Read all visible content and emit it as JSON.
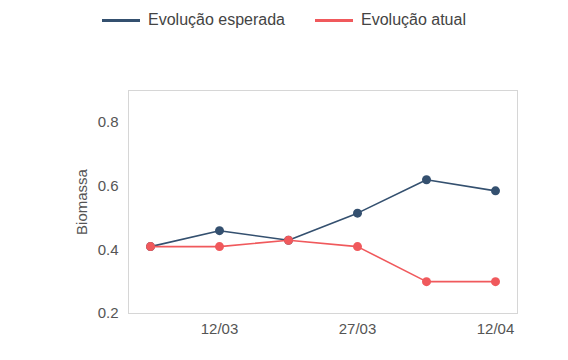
{
  "chart_data": {
    "type": "line",
    "categories": [
      null,
      "12/03",
      null,
      "27/03",
      null,
      "12/04"
    ],
    "ylabel": "Biomassa",
    "ylim": [
      0.2,
      0.9
    ],
    "yticks": [
      0.2,
      0.4,
      0.6,
      0.8
    ],
    "legend": "top",
    "series": [
      {
        "name": "Evolução esperada",
        "color": "#34506f",
        "marker": "circle",
        "values": [
          0.41,
          0.46,
          0.43,
          0.515,
          0.62,
          0.585
        ]
      },
      {
        "name": "Evolução atual",
        "color": "#f0595c",
        "marker": "circle",
        "values": [
          0.41,
          0.41,
          0.43,
          0.41,
          0.3,
          0.3
        ]
      }
    ]
  }
}
